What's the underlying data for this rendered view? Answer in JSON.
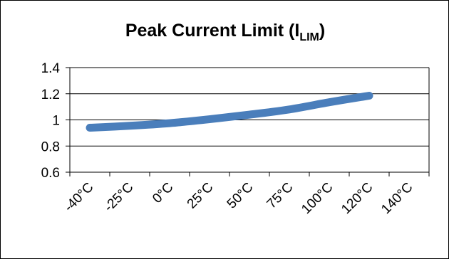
{
  "chart_data": {
    "type": "line",
    "title": "Peak Current Limit (I",
    "title_subscript": "LIM",
    "title_suffix": ")",
    "categories": [
      "-40°C",
      "-25°C",
      "0°C",
      "25°C",
      "50°C",
      "75°C",
      "100°C",
      "120°C",
      "140°C"
    ],
    "series": [
      {
        "values": [
          0.94,
          0.955,
          0.975,
          1.005,
          1.04,
          1.08,
          1.135,
          1.185,
          null
        ]
      }
    ],
    "y_ticks": [
      "1.4",
      "1.2",
      "1",
      "0.8",
      "0.6"
    ],
    "ylim": [
      0.6,
      1.4
    ],
    "xlabel": "",
    "ylabel": "",
    "grid": "horizontal",
    "legend": "none",
    "series_color": "#4a7ebb"
  }
}
